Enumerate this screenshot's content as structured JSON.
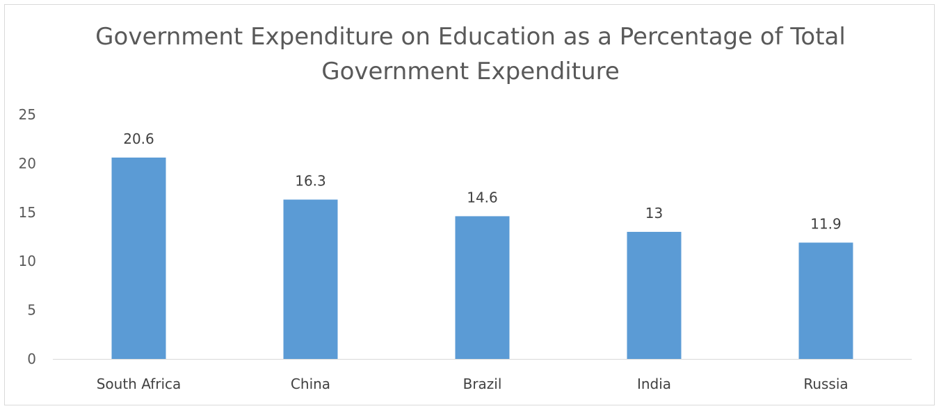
{
  "chart_data": {
    "type": "bar",
    "title_lines": [
      "Government Expenditure on Education as a Percentage of Total",
      "Government Expenditure"
    ],
    "categories": [
      "South Africa",
      "China",
      "Brazil",
      "India",
      "Russia"
    ],
    "values": [
      20.6,
      16.3,
      14.6,
      13,
      11.9
    ],
    "data_labels": [
      "20.6",
      "16.3",
      "14.6",
      "13",
      "11.9"
    ],
    "y_ticks": [
      "0",
      "5",
      "10",
      "15",
      "20",
      "25"
    ],
    "ylim": [
      0,
      25
    ],
    "grid": false,
    "legend": "none",
    "bar_color": "#5b9bd5",
    "axis_color": "#d9d9d9"
  }
}
